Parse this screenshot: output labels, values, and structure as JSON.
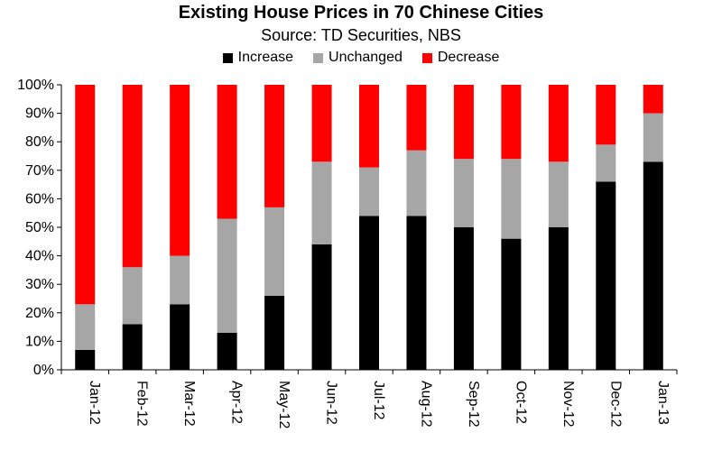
{
  "chart_data": {
    "type": "bar",
    "stacked": true,
    "title": "Existing House Prices in 70 Chinese Cities",
    "subtitle": "Source: TD Securities, NBS",
    "categories": [
      "Jan-12",
      "Feb-12",
      "Mar-12",
      "Apr-12",
      "May-12",
      "Jun-12",
      "Jul-12",
      "Aug-12",
      "Sep-12",
      "Oct-12",
      "Nov-12",
      "Dec-12",
      "Jan-13"
    ],
    "series": [
      {
        "name": "Increase",
        "color": "#000000",
        "values": [
          7,
          16,
          23,
          13,
          26,
          44,
          54,
          54,
          50,
          46,
          50,
          66,
          73
        ]
      },
      {
        "name": "Unchanged",
        "color": "#a6a6a6",
        "values": [
          16,
          20,
          17,
          40,
          31,
          29,
          17,
          23,
          24,
          28,
          23,
          13,
          17
        ]
      },
      {
        "name": "Decrease",
        "color": "#ff0000",
        "values": [
          77,
          64,
          60,
          47,
          43,
          27,
          29,
          23,
          26,
          26,
          27,
          21,
          10
        ]
      }
    ],
    "yticks": [
      "0%",
      "10%",
      "20%",
      "30%",
      "40%",
      "50%",
      "60%",
      "70%",
      "80%",
      "90%",
      "100%"
    ],
    "ylim": [
      0,
      100
    ],
    "legend_position": "top",
    "grid": false
  }
}
